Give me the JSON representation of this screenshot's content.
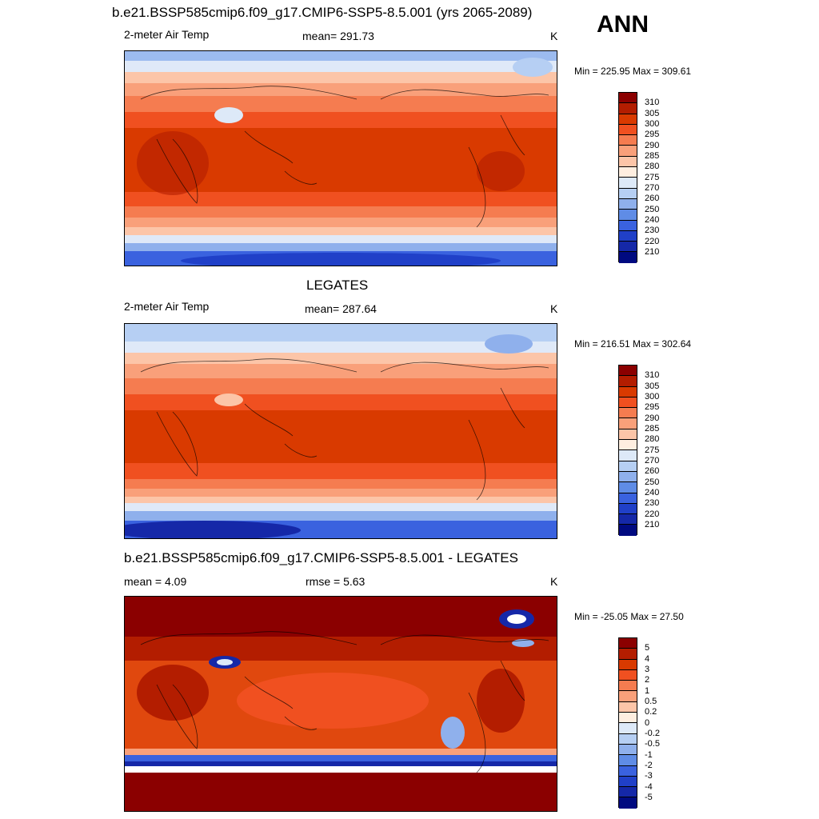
{
  "season": "ANN",
  "panels": [
    {
      "title": "b.e21.BSSP585cmip6.f09_g17.CMIP6-SSP5-8.5.001 (yrs 2065-2089)",
      "left_label": "2-meter Air Temp",
      "center_label": "mean= 291.73",
      "units": "K",
      "minmax": "Min = 225.95 Max = 309.61"
    },
    {
      "title": "LEGATES",
      "left_label": "2-meter Air Temp",
      "center_label": "mean= 287.64",
      "units": "K",
      "minmax": "Min = 216.51 Max = 302.64"
    },
    {
      "title": "b.e21.BSSP585cmip6.f09_g17.CMIP6-SSP5-8.5.001 - LEGATES",
      "left_label": "mean =   4.09",
      "center_label": "rmse =   5.63",
      "units": "K",
      "minmax": "Min = -25.05 Max =  27.50"
    }
  ],
  "colorbars": {
    "temp": {
      "labels": [
        "310",
        "305",
        "300",
        "295",
        "290",
        "285",
        "280",
        "275",
        "270",
        "260",
        "250",
        "240",
        "230",
        "220",
        "210"
      ],
      "colors": [
        "#8b0000",
        "#b31d00",
        "#d93a00",
        "#f05020",
        "#f57c50",
        "#f9a07a",
        "#fcc5a8",
        "#feeee0",
        "#dde9f8",
        "#b6cff3",
        "#8fb0ec",
        "#5f8ce6",
        "#3a62df",
        "#2040c8",
        "#1528a8",
        "#000a80"
      ]
    },
    "diff": {
      "labels": [
        "5",
        "4",
        "3",
        "2",
        "1",
        "0.5",
        "0.2",
        "0",
        "-0.2",
        "-0.5",
        "-1",
        "-2",
        "-3",
        "-4",
        "-5"
      ],
      "colors": [
        "#8b0000",
        "#b31d00",
        "#d93a00",
        "#f05020",
        "#f57c50",
        "#f9a07a",
        "#fcc5a8",
        "#feeee0",
        "#dde9f8",
        "#b6cff3",
        "#8fb0ec",
        "#5f8ce6",
        "#3a62df",
        "#2040c8",
        "#1528a8",
        "#000a80"
      ]
    }
  }
}
